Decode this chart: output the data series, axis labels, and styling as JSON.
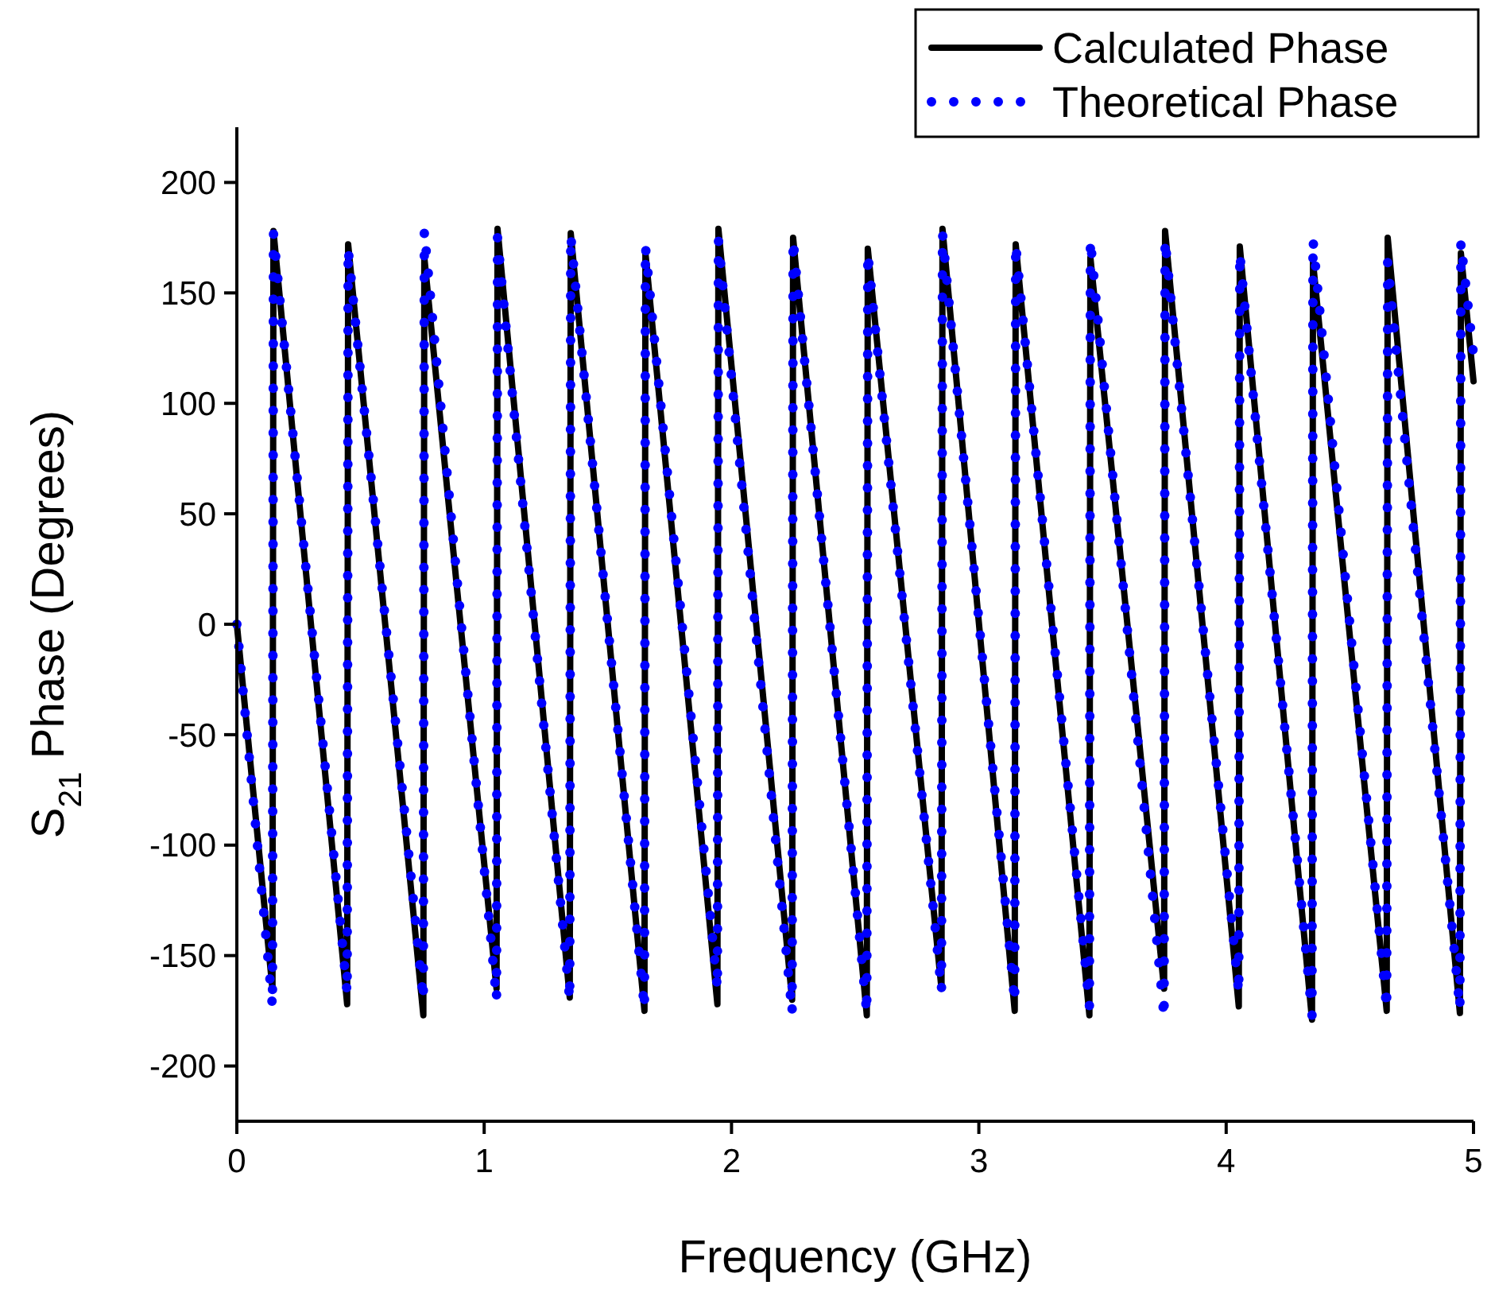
{
  "chart_data": {
    "type": "line",
    "xlabel": "Frequency (GHz)",
    "ylabel": "S$_{21}$ Phase (Degrees)",
    "xlim": [
      0,
      5
    ],
    "xticks": [
      0,
      1,
      2,
      3,
      4,
      5
    ],
    "ylim": [
      -225,
      225
    ],
    "yticks": [
      -200,
      -150,
      -100,
      -50,
      0,
      50,
      100,
      150,
      200
    ],
    "grid": false,
    "legend": "top right",
    "series": [
      {
        "name": "Calculated Phase",
        "color": "#000000",
        "line_style": "solid",
        "x": [
          0,
          0.144,
          0.148,
          0.446,
          0.45,
          0.754,
          0.758,
          1.05,
          1.054,
          1.346,
          1.35,
          1.648,
          1.652,
          1.943,
          1.947,
          2.245,
          2.249,
          2.547,
          2.551,
          2.849,
          2.853,
          3.145,
          3.149,
          3.447,
          3.451,
          3.749,
          3.753,
          4.051,
          4.055,
          4.347,
          4.351,
          4.649,
          4.653,
          4.945,
          4.949,
          5
        ],
        "values": [
          0,
          -165,
          178,
          -172,
          172,
          -177,
          166,
          -165,
          179,
          -169,
          177,
          -175,
          168,
          -172,
          179,
          -170,
          175,
          -177,
          170,
          -165,
          179,
          -175,
          172,
          -177,
          166,
          -165,
          178,
          -173,
          171,
          -179,
          164,
          -175,
          175,
          -176,
          168,
          110
        ]
      },
      {
        "name": "Theoretical Phase",
        "color": "#0000ff",
        "line_style": "dotted",
        "x": [
          0,
          0.144,
          0.148,
          0.446,
          0.45,
          0.754,
          0.758,
          1.05,
          1.054,
          1.346,
          1.35,
          1.648,
          1.652,
          1.943,
          1.947,
          2.245,
          2.249,
          2.547,
          2.551,
          2.849,
          2.853,
          3.145,
          3.149,
          3.447,
          3.451,
          3.749,
          3.753,
          4.051,
          4.055,
          4.347,
          4.351,
          4.649,
          4.653,
          4.945,
          4.949,
          5
        ],
        "values": [
          0,
          -173,
          177,
          -167,
          170,
          -170,
          178,
          -170,
          175,
          -170,
          176,
          -174,
          171,
          -165,
          174,
          -176,
          174,
          -176,
          168,
          -166,
          177,
          -171,
          172,
          -173,
          174,
          -178,
          174,
          -167,
          168,
          -177,
          174,
          -174,
          164,
          -174,
          173,
          122
        ]
      }
    ]
  }
}
